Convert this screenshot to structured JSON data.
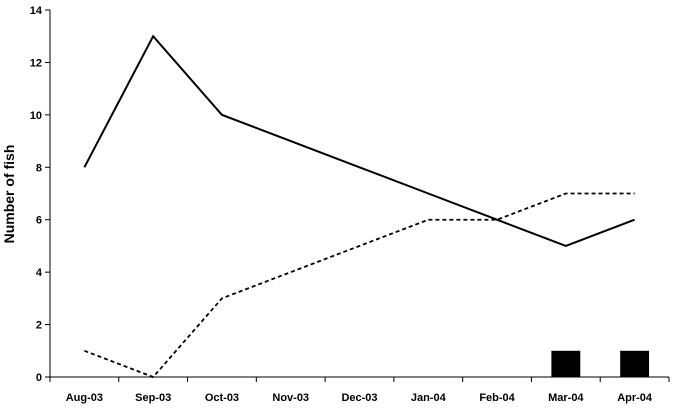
{
  "chart_data": {
    "type": "line",
    "title": "",
    "xlabel": "",
    "ylabel": "Number of fish",
    "categories": [
      "Aug-03",
      "Sep-03",
      "Oct-03",
      "Nov-03",
      "Dec-03",
      "Jan-04",
      "Feb-04",
      "Mar-04",
      "Apr-04"
    ],
    "ylim": [
      0,
      14
    ],
    "yticks": [
      0,
      2,
      4,
      6,
      8,
      10,
      12,
      14
    ],
    "grid": false,
    "legend": "none",
    "series": [
      {
        "type": "line",
        "style": "solid",
        "color": "#000000",
        "values": [
          8,
          13,
          10,
          9,
          8,
          7,
          6,
          5,
          6
        ]
      },
      {
        "type": "line",
        "style": "dashed",
        "color": "#000000",
        "values": [
          1,
          0,
          3,
          4,
          5,
          6,
          6,
          7,
          7
        ]
      },
      {
        "type": "bar",
        "style": "filled",
        "color": "#000000",
        "values": [
          0,
          0,
          0,
          0,
          0,
          0,
          0,
          1,
          1
        ]
      }
    ]
  }
}
